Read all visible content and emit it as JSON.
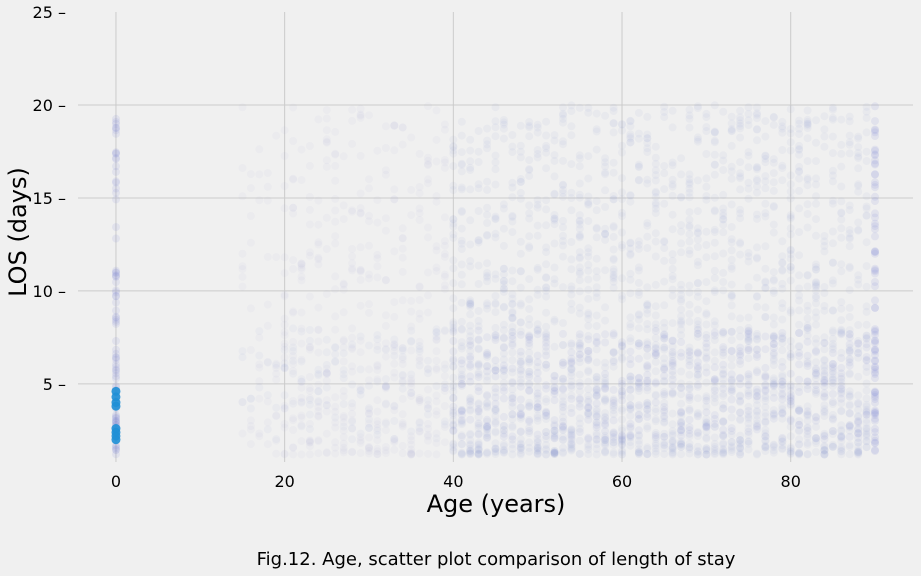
{
  "chart_data": {
    "type": "scatter",
    "xlabel": "Age (years)",
    "ylabel": "LOS (days)",
    "caption": "Fig.12. Age, scatter plot comparison of length of stay",
    "xlim": [
      -4.5,
      94.5
    ],
    "ylim": [
      0.8,
      25
    ],
    "xticks": [
      0,
      20,
      40,
      60,
      80
    ],
    "yticks": [
      5,
      10,
      15,
      20,
      25
    ],
    "grid": true,
    "point_color": "#7b85d4",
    "highlight_color": "#1f8fd6",
    "background_color": "#f0f0f0",
    "grid_color": "#cbcbcb",
    "ages_range": [
      15,
      89
    ],
    "age_special": [
      0,
      90
    ],
    "los_range": [
      1.2,
      20
    ],
    "highlight_points": [
      {
        "x": 0,
        "y": 2.0
      },
      {
        "x": 0,
        "y": 2.2
      },
      {
        "x": 0,
        "y": 2.4
      },
      {
        "x": 0,
        "y": 2.6
      },
      {
        "x": 0,
        "y": 3.8
      },
      {
        "x": 0,
        "y": 4.0
      },
      {
        "x": 0,
        "y": 4.3
      },
      {
        "x": 0,
        "y": 4.6
      }
    ]
  }
}
